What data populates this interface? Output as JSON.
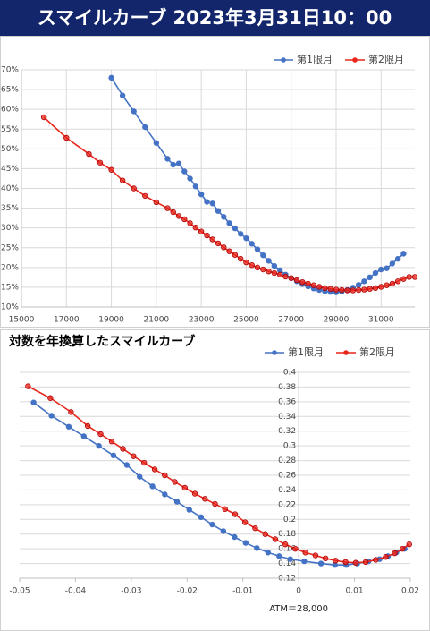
{
  "header": {
    "title": "スマイルカーブ  2023年3月31日10：00"
  },
  "chart_data": [
    {
      "type": "line",
      "xlim": [
        15000,
        32500
      ],
      "xticks": [
        15000,
        17000,
        19000,
        21000,
        23000,
        25000,
        27000,
        29000,
        31000
      ],
      "ylim": [
        10,
        70
      ],
      "yticks": [
        {
          "value": 10,
          "label": "10%"
        },
        {
          "value": 15,
          "label": "15%"
        },
        {
          "value": 20,
          "label": "20%"
        },
        {
          "value": 25,
          "label": "25%"
        },
        {
          "value": 30,
          "label": "30%"
        },
        {
          "value": 35,
          "label": "35%"
        },
        {
          "value": 40,
          "label": "40%"
        },
        {
          "value": 45,
          "label": "45%"
        },
        {
          "value": 50,
          "label": "50%"
        },
        {
          "value": 55,
          "label": "55%"
        },
        {
          "value": 60,
          "label": "60%"
        },
        {
          "value": 65,
          "label": "65%"
        },
        {
          "value": 70,
          "label": "70%"
        }
      ],
      "grid": true,
      "legend": "top-right",
      "series": [
        {
          "name": "第1限月",
          "color": "#4472c4",
          "x": [
            19000,
            19500,
            20000,
            20500,
            21000,
            21500,
            21750,
            22000,
            22250,
            22500,
            22750,
            23000,
            23250,
            23500,
            23750,
            24000,
            24250,
            24500,
            24750,
            25000,
            25250,
            25500,
            25750,
            26000,
            26250,
            26500,
            26750,
            27000,
            27250,
            27500,
            27750,
            28000,
            28250,
            28500,
            28750,
            29000,
            29250,
            29500,
            29750,
            30000,
            30250,
            30500,
            30750,
            31000,
            31250,
            31500,
            31750,
            32000
          ],
          "values": [
            68,
            63.5,
            59.5,
            55.5,
            51.5,
            47.5,
            46,
            46.3,
            44.3,
            42.5,
            40.5,
            38.5,
            36.6,
            36.2,
            34.3,
            32.8,
            31.2,
            29.9,
            28.5,
            27.4,
            26,
            24.6,
            23.1,
            21.7,
            20.4,
            19.3,
            18.2,
            17.3,
            16.5,
            15.8,
            15.2,
            14.7,
            14.3,
            14,
            13.8,
            13.7,
            13.9,
            14.3,
            14.9,
            15.6,
            16.5,
            17.5,
            18.6,
            19.5,
            19.8,
            21,
            22.2,
            23.5
          ]
        },
        {
          "name": "第2限月",
          "color": "#e8261c",
          "x": [
            16000,
            17000,
            18000,
            18500,
            19000,
            19500,
            20000,
            20500,
            21000,
            21500,
            21750,
            22000,
            22250,
            22500,
            22750,
            23000,
            23250,
            23500,
            23750,
            24000,
            24250,
            24500,
            24750,
            25000,
            25250,
            25500,
            25750,
            26000,
            26250,
            26500,
            26750,
            27000,
            27250,
            27500,
            27750,
            28000,
            28250,
            28500,
            28750,
            29000,
            29250,
            29500,
            29750,
            30000,
            30250,
            30500,
            30750,
            31000,
            31250,
            31500,
            31750,
            32000,
            32250,
            32500
          ],
          "values": [
            58,
            52.8,
            48.7,
            46.5,
            44.7,
            42,
            40,
            38.1,
            36.5,
            35,
            34,
            33,
            32.2,
            31.2,
            30.1,
            29.1,
            28.1,
            27.1,
            26.1,
            25.1,
            24.1,
            23.2,
            22.2,
            21.3,
            20.6,
            20,
            19.5,
            19,
            18.6,
            18.2,
            17.7,
            17.3,
            16.8,
            16.3,
            15.9,
            15.5,
            15.1,
            14.8,
            14.6,
            14.4,
            14.3,
            14.2,
            14.2,
            14.3,
            14.4,
            14.6,
            14.8,
            15.1,
            15.5,
            15.9,
            16.5,
            17.1,
            17.6,
            17.6
          ]
        }
      ]
    },
    {
      "type": "line",
      "title": "対数を年換算したスマイルカーブ",
      "annotation": "ATM＝28,000",
      "xlim": [
        -0.05,
        0.02
      ],
      "xticks": [
        -0.05,
        -0.04,
        -0.03,
        -0.02,
        -0.01,
        0,
        0.01,
        0.02
      ],
      "ylim": [
        0.12,
        0.4
      ],
      "yticks": [
        0.12,
        0.14,
        0.16,
        0.18,
        0.2,
        0.22,
        0.24,
        0.26,
        0.28,
        0.3,
        0.32,
        0.34,
        0.36,
        0.38,
        0.4
      ],
      "grid": true,
      "legend": "top-right",
      "series": [
        {
          "name": "第1限月",
          "color": "#4472c4",
          "x": [
            -0.0475,
            -0.0443,
            -0.0412,
            -0.0385,
            -0.0358,
            -0.0332,
            -0.0308,
            -0.0285,
            -0.0262,
            -0.024,
            -0.0218,
            -0.0196,
            -0.0175,
            -0.0155,
            -0.0135,
            -0.0115,
            -0.0095,
            -0.0075,
            -0.0055,
            -0.0035,
            -0.0015,
            0.001,
            0.004,
            0.0065,
            0.0085,
            0.0105,
            0.0125,
            0.0145,
            0.016,
            0.0175,
            0.019
          ],
          "values": [
            0.359,
            0.341,
            0.326,
            0.313,
            0.3,
            0.287,
            0.274,
            0.258,
            0.245,
            0.234,
            0.224,
            0.213,
            0.203,
            0.193,
            0.184,
            0.176,
            0.168,
            0.161,
            0.155,
            0.15,
            0.146,
            0.143,
            0.14,
            0.138,
            0.138,
            0.14,
            0.143,
            0.146,
            0.15,
            0.155,
            0.16
          ]
        },
        {
          "name": "第2限月",
          "color": "#e8261c",
          "x": [
            -0.0485,
            -0.0445,
            -0.0408,
            -0.0378,
            -0.0355,
            -0.0335,
            -0.0315,
            -0.0296,
            -0.0277,
            -0.0258,
            -0.024,
            -0.0222,
            -0.0204,
            -0.0186,
            -0.0168,
            -0.015,
            -0.0132,
            -0.0114,
            -0.0096,
            -0.0078,
            -0.006,
            -0.0042,
            -0.0024,
            -0.0006,
            0.0012,
            0.003,
            0.0048,
            0.0066,
            0.0084,
            0.0102,
            0.012,
            0.0138,
            0.0156,
            0.0172,
            0.0186,
            0.0198
          ],
          "values": [
            0.381,
            0.365,
            0.346,
            0.327,
            0.316,
            0.306,
            0.296,
            0.286,
            0.277,
            0.268,
            0.26,
            0.251,
            0.243,
            0.235,
            0.228,
            0.221,
            0.214,
            0.207,
            0.196,
            0.188,
            0.18,
            0.173,
            0.166,
            0.16,
            0.155,
            0.151,
            0.147,
            0.144,
            0.142,
            0.141,
            0.142,
            0.145,
            0.149,
            0.154,
            0.16,
            0.166
          ]
        }
      ]
    }
  ]
}
